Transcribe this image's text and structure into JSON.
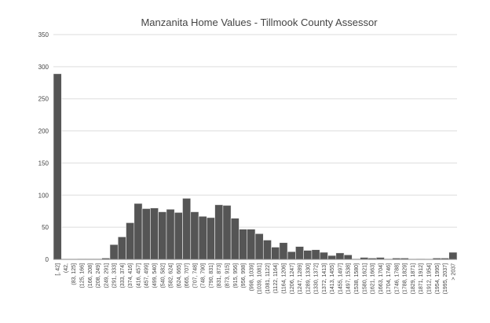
{
  "chart_data": {
    "type": "bar",
    "title": "Manzanita Home Values - Tillmook  County Assessor",
    "xlabel": "",
    "ylabel": "",
    "ylim": [
      0,
      350
    ],
    "yticks": [
      0,
      50,
      100,
      150,
      200,
      250,
      300,
      350
    ],
    "grid": true,
    "legend": "none",
    "bar_color": "#555555",
    "categories": [
      "[, 42]",
      "(42,",
      "(83, 125]",
      "(125, 166]",
      "(166, 208]",
      "(208, 249]",
      "(249, 291]",
      "(291, 333]",
      "(333, 374]",
      "(374, 416]",
      "(416, 457]",
      "(457, 499]",
      "(499, 540]",
      "(540, 582]",
      "(582, 624]",
      "(624, 665]",
      "(665, 707]",
      "(707, 748]",
      "(748, 790]",
      "(790, 831]",
      "(831, 873]",
      "(873, 915]",
      "(915, 956]",
      "(956, 998]",
      "(998, 1039]",
      "(1039, 1081]",
      "(1081, 1122]",
      "(1122, 1164]",
      "(1164, 1206]",
      "(1206, 1247]",
      "(1247, 1289]",
      "(1289, 1330]",
      "(1330, 1372]",
      "(1372, 1413]",
      "(1413, 1455]",
      "(1455, 1497]",
      "(1497, 1538]",
      "(1538, 1580]",
      "(1580, 1621]",
      "(1621, 1663]",
      "(1663, 1704]",
      "(1704, 1746]",
      "(1746, 1788]",
      "(1788, 1829]",
      "(1829, 1871]",
      "(1871, 1912]",
      "(1912, 1954]",
      "(1954, 1995]",
      "(1995, 2037]",
      "> 2037"
    ],
    "values": [
      289,
      0,
      0,
      1,
      1,
      1,
      2,
      23,
      35,
      57,
      87,
      79,
      80,
      74,
      78,
      73,
      95,
      74,
      67,
      65,
      85,
      84,
      64,
      47,
      47,
      40,
      30,
      19,
      26,
      12,
      20,
      14,
      15,
      11,
      6,
      10,
      7,
      1,
      3,
      2,
      3,
      1,
      2,
      2,
      0,
      1,
      0,
      2,
      2,
      11
    ]
  }
}
